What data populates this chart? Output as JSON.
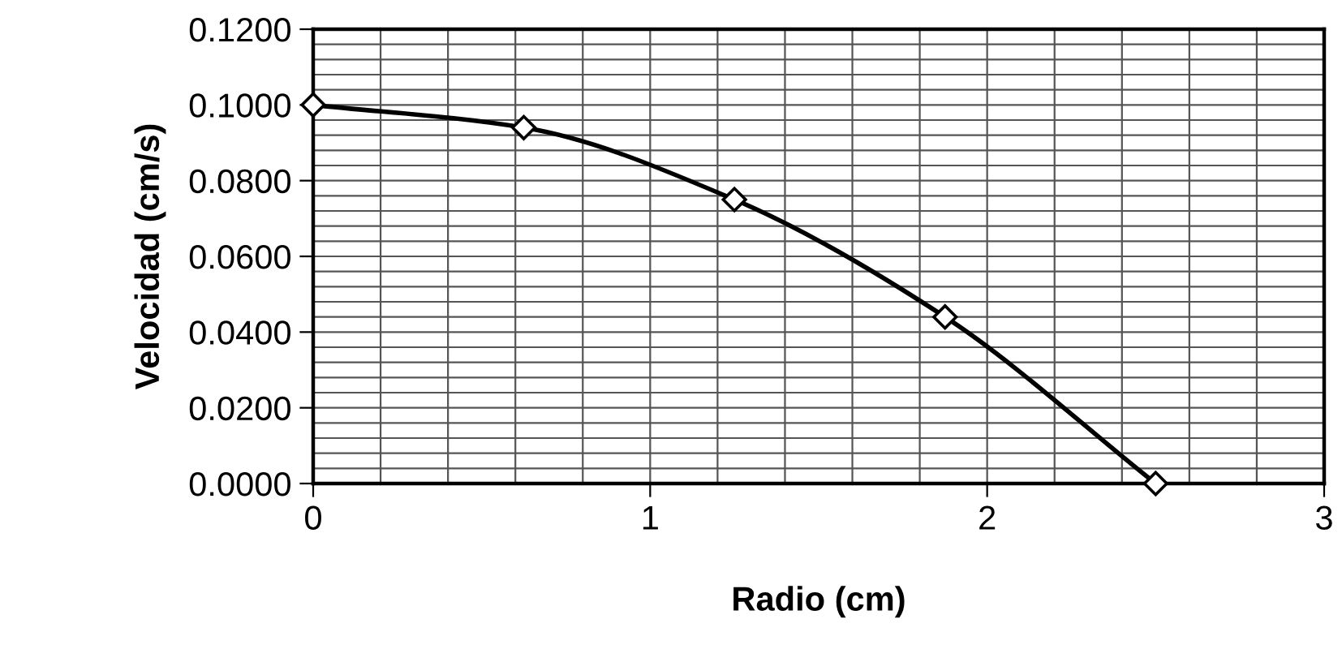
{
  "chart_data": {
    "type": "line",
    "xlabel": "Radio (cm)",
    "ylabel": "Velocidad (cm/s)",
    "x": [
      0,
      0.625,
      1.25,
      1.875,
      2.5
    ],
    "series": [
      {
        "color": "#000000",
        "values": [
          0.1,
          0.094,
          0.075,
          0.044,
          0.0
        ]
      }
    ],
    "marker": "diamond",
    "line_style": "solid",
    "grid": true,
    "xlim": [
      0,
      3
    ],
    "ylim": [
      0,
      0.12
    ],
    "xticks": [
      0,
      {
        "value": 0.2,
        "label": null
      },
      {
        "value": 0.4,
        "label": null
      },
      {
        "value": 0.6,
        "label": null
      },
      {
        "value": 0.8,
        "label": null
      },
      1,
      {
        "value": 1.2,
        "label": null
      },
      {
        "value": 1.4,
        "label": null
      },
      {
        "value": 1.6,
        "label": null
      },
      {
        "value": 1.8,
        "label": null
      },
      2,
      {
        "value": 2.2,
        "label": null
      },
      {
        "value": 2.4,
        "label": null
      },
      {
        "value": 2.6,
        "label": null
      },
      {
        "value": 2.8,
        "label": null
      },
      3
    ],
    "yticks": [
      {
        "value": 0,
        "label": "0.0000"
      },
      {
        "value": 0.004,
        "label": null
      },
      {
        "value": 0.008,
        "label": null
      },
      {
        "value": 0.012,
        "label": null
      },
      {
        "value": 0.016,
        "label": null
      },
      {
        "value": 0.02,
        "label": "0.0200"
      },
      {
        "value": 0.024,
        "label": null
      },
      {
        "value": 0.028,
        "label": null
      },
      {
        "value": 0.032,
        "label": null
      },
      {
        "value": 0.036,
        "label": null
      },
      {
        "value": 0.04,
        "label": "0.0400"
      },
      {
        "value": 0.044,
        "label": null
      },
      {
        "value": 0.048,
        "label": null
      },
      {
        "value": 0.052,
        "label": null
      },
      {
        "value": 0.056,
        "label": null
      },
      {
        "value": 0.06,
        "label": "0.0600"
      },
      {
        "value": 0.064,
        "label": null
      },
      {
        "value": 0.068,
        "label": null
      },
      {
        "value": 0.072,
        "label": null
      },
      {
        "value": 0.076,
        "label": null
      },
      {
        "value": 0.08,
        "label": "0.0800"
      },
      {
        "value": 0.084,
        "label": null
      },
      {
        "value": 0.088,
        "label": null
      },
      {
        "value": 0.092,
        "label": null
      },
      {
        "value": 0.096,
        "label": null
      },
      {
        "value": 0.1,
        "label": "0.1000"
      },
      {
        "value": 0.104,
        "label": null
      },
      {
        "value": 0.108,
        "label": null
      },
      {
        "value": 0.112,
        "label": null
      },
      {
        "value": 0.116,
        "label": null
      },
      {
        "value": 0.12,
        "label": "0.1200"
      }
    ]
  }
}
